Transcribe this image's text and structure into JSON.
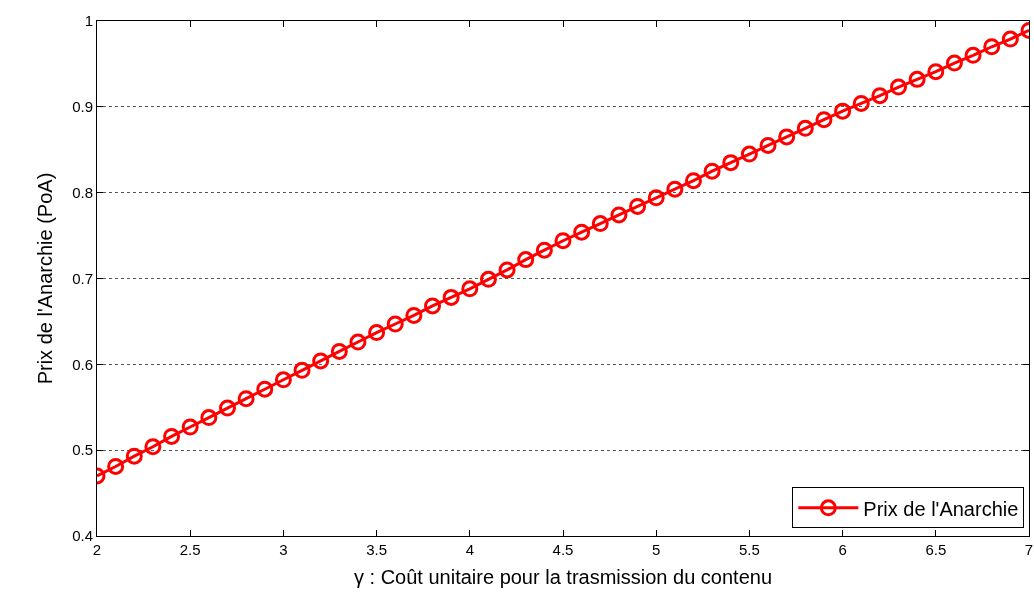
{
  "chart_data": {
    "type": "line",
    "xlabel": "γ : Coût unitaire pour la trasmission du contenu",
    "ylabel": "Prix de l'Anarchie (PoA)",
    "x": [
      2,
      2.1,
      2.2,
      2.3,
      2.4,
      2.5,
      2.6,
      2.7,
      2.8,
      2.9,
      3,
      3.1,
      3.2,
      3.3,
      3.4,
      3.5,
      3.6,
      3.7,
      3.8,
      3.9,
      4,
      4.1,
      4.2,
      4.3,
      4.4,
      4.5,
      4.6,
      4.7,
      4.8,
      4.9,
      5,
      5.1,
      5.2,
      5.3,
      5.4,
      5.5,
      5.6,
      5.7,
      5.8,
      5.9,
      6,
      6.1,
      6.2,
      6.3,
      6.4,
      6.5,
      6.6,
      6.7,
      6.8,
      6.9,
      7
    ],
    "series": [
      {
        "name": "Prix de l'Anarchie",
        "color": "#ff0000",
        "values": [
          0.47,
          0.481,
          0.493,
          0.504,
          0.516,
          0.527,
          0.538,
          0.549,
          0.56,
          0.571,
          0.582,
          0.593,
          0.604,
          0.615,
          0.626,
          0.637,
          0.647,
          0.657,
          0.668,
          0.678,
          0.688,
          0.699,
          0.71,
          0.722,
          0.733,
          0.744,
          0.754,
          0.764,
          0.774,
          0.784,
          0.794,
          0.804,
          0.814,
          0.825,
          0.835,
          0.845,
          0.855,
          0.865,
          0.875,
          0.885,
          0.895,
          0.904,
          0.913,
          0.923,
          0.932,
          0.941,
          0.951,
          0.96,
          0.97,
          0.979,
          0.989
        ]
      }
    ],
    "xlim": [
      2,
      7
    ],
    "xticks": [
      2,
      2.5,
      3,
      3.5,
      4,
      4.5,
      5,
      5.5,
      6,
      6.5,
      7
    ],
    "ylim": [
      0.4,
      1
    ],
    "yticks": [
      0.4,
      0.5,
      0.6,
      0.7,
      0.8,
      0.9,
      1
    ],
    "grid": "y",
    "legend": "bottom right",
    "marker": "circle",
    "line_style": "solid"
  }
}
